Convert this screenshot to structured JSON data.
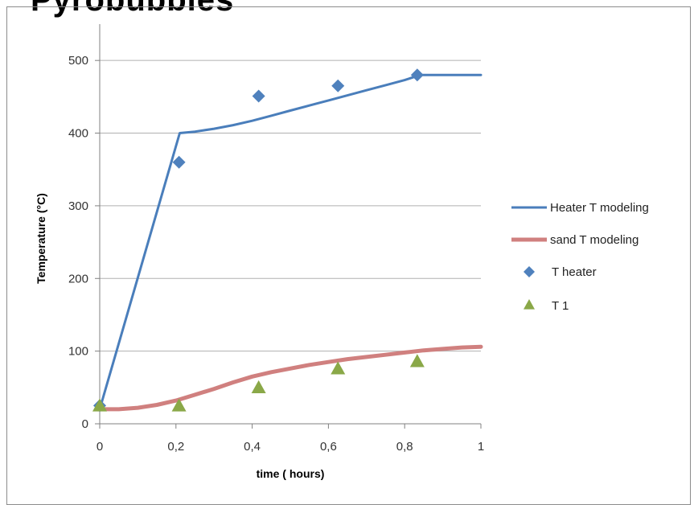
{
  "page": {
    "title": "Pyrobubbles"
  },
  "colors": {
    "heater_line": "#4a7ebb",
    "sand_line": "#d0807f",
    "heater_marker": "#4f81bd",
    "t1_marker": "#8aa848",
    "gridline": "#b0b0b0",
    "axis": "#808080"
  },
  "chart_data": {
    "type": "scatter",
    "xlabel": "time ( hours)",
    "ylabel": "Temperature (°C)",
    "xlim": [
      0,
      1
    ],
    "ylim": [
      0,
      550
    ],
    "x_ticks": [
      "0",
      "0,2",
      "0,4",
      "0,6",
      "0,8",
      "1"
    ],
    "y_ticks": [
      "0",
      "100",
      "200",
      "300",
      "400",
      "500"
    ],
    "grid": "horizontal",
    "legend_position": "right",
    "series": [
      {
        "name": "Heater T modeling",
        "kind": "line",
        "x": [
          0,
          0.21,
          0.25,
          0.3,
          0.35,
          0.4,
          0.45,
          0.5,
          0.55,
          0.6,
          0.65,
          0.7,
          0.75,
          0.8,
          0.84,
          0.9,
          1.0
        ],
        "y": [
          20,
          400,
          402,
          406,
          411,
          417,
          424,
          431,
          438,
          445,
          452,
          459,
          466,
          473,
          480,
          480,
          480
        ]
      },
      {
        "name": "sand T modeling",
        "kind": "line",
        "x": [
          0,
          0.05,
          0.1,
          0.15,
          0.2,
          0.25,
          0.3,
          0.35,
          0.4,
          0.45,
          0.5,
          0.55,
          0.6,
          0.65,
          0.7,
          0.75,
          0.8,
          0.85,
          0.9,
          0.95,
          1.0
        ],
        "y": [
          20,
          20,
          22,
          26,
          32,
          40,
          48,
          57,
          65,
          71,
          76,
          81,
          85,
          89,
          92,
          95,
          98,
          101,
          103,
          105,
          106
        ]
      },
      {
        "name": "T heater",
        "kind": "scatter",
        "marker": "diamond",
        "x": [
          0,
          0.208,
          0.417,
          0.625,
          0.833
        ],
        "y": [
          25,
          360,
          451,
          465,
          480
        ]
      },
      {
        "name": "T 1",
        "kind": "scatter",
        "marker": "triangle",
        "x": [
          0,
          0.208,
          0.417,
          0.625,
          0.833
        ],
        "y": [
          25,
          25,
          50,
          76,
          86
        ]
      }
    ]
  }
}
